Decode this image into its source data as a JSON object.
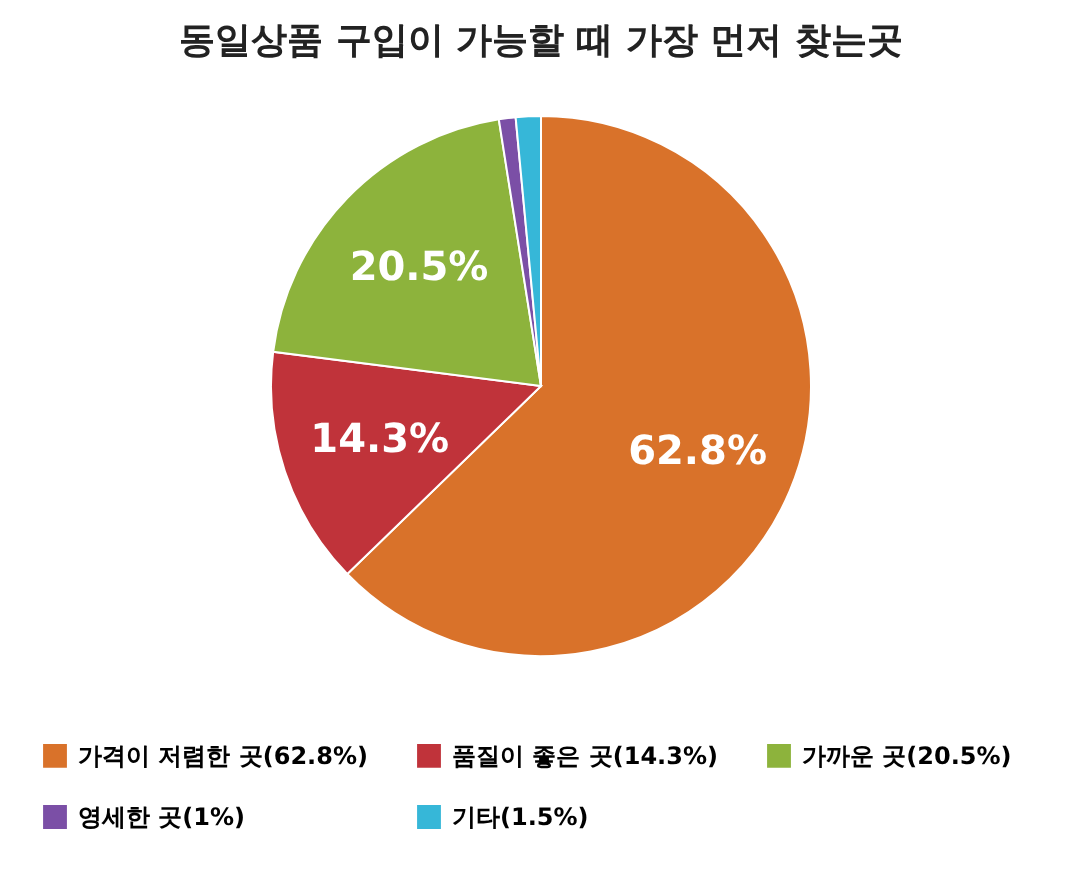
{
  "chart_data": {
    "type": "pie",
    "title": "동일상품 구입이 가능할 때 가장 먼저 찾는곳",
    "categories": [
      "가격이 저렴한 곳(62.8%)",
      "품질이 좋은 곳(14.3%)",
      "가까운 곳(20.5%)",
      "영세한 곳(1%)",
      "기타(1.5%)"
    ],
    "values": [
      62.8,
      14.3,
      20.5,
      1,
      1.5
    ],
    "colors": [
      "#d9722a",
      "#c0333a",
      "#8db33c",
      "#7b4fa6",
      "#36b7d8"
    ],
    "value_labels": [
      "62.8%",
      "14.3%",
      "20.5%",
      null,
      null
    ],
    "legend": "bottom"
  }
}
